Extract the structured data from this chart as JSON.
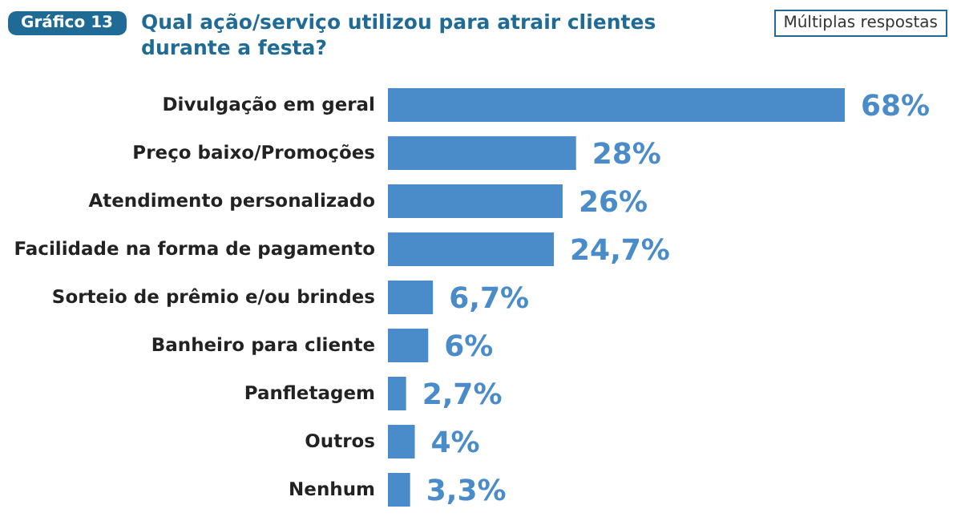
{
  "chart_data": {
    "type": "bar",
    "orientation": "horizontal",
    "subtitle": "Gráfico 13",
    "title": "Qual ação/serviço utilizou para atrair clientes durante a festa?",
    "annotations": [
      "Múltiplas respostas"
    ],
    "categories": [
      "Divulgação em geral",
      "Preço baixo/Promoções",
      "Atendimento personalizado",
      "Facilidade na forma de pagamento",
      "Sorteio de prêmio e/ou brindes",
      "Banheiro para cliente",
      "Panfletagem",
      "Outros",
      "Nenhum"
    ],
    "values": [
      68,
      28,
      26,
      24.7,
      6.7,
      6,
      2.7,
      4,
      3.3
    ],
    "value_labels": [
      "68%",
      "28%",
      "26%",
      "24,7%",
      "6,7%",
      "6%",
      "2,7%",
      "4%",
      "3,3%"
    ],
    "color": "#4a8bc9",
    "tick_labels": "y"
  }
}
